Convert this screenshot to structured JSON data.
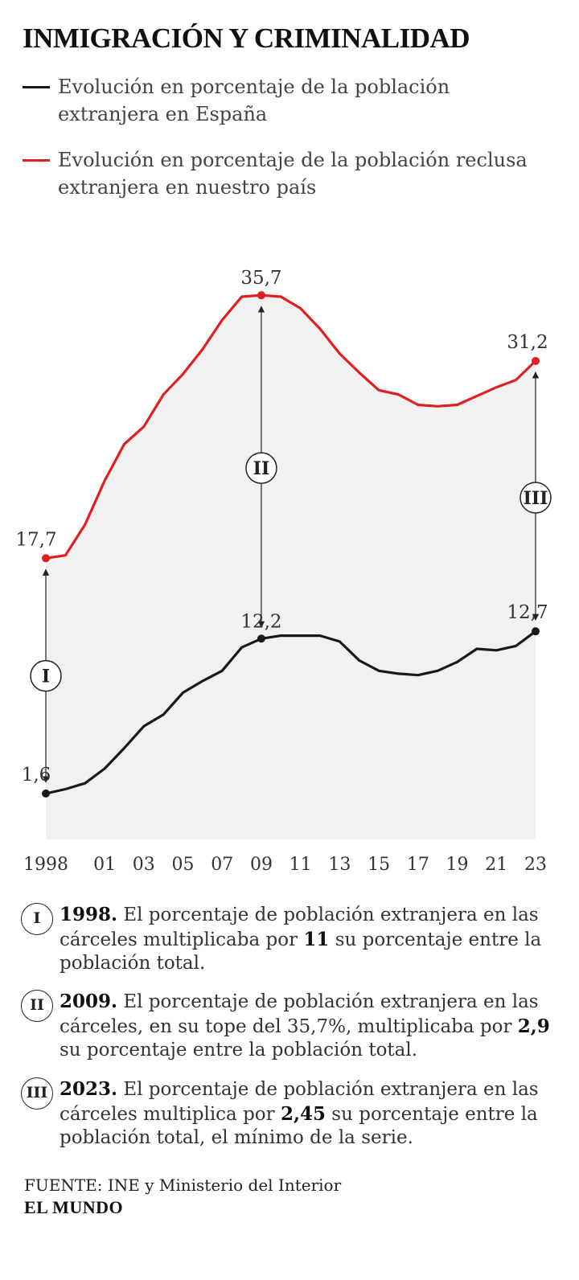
{
  "title": "INMIGRACIÓN Y CRIMINALIDAD",
  "legend": [
    {
      "label": "Evolución en porcentaje de la población extranjera en España",
      "color": "#1a1a1a"
    },
    {
      "label": "Evolución en porcentaje de la población reclusa extranjera en nuestro país",
      "color": "#e02020"
    }
  ],
  "chart_data": {
    "type": "line",
    "title": "INMIGRACIÓN Y CRIMINALIDAD",
    "xlabel": "",
    "ylabel": "",
    "x": [
      1998,
      1999,
      2000,
      2001,
      2002,
      2003,
      2004,
      2005,
      2006,
      2007,
      2008,
      2009,
      2010,
      2011,
      2012,
      2013,
      2014,
      2015,
      2016,
      2017,
      2018,
      2019,
      2020,
      2021,
      2022,
      2023
    ],
    "x_tick_labels": [
      "1998",
      "01",
      "03",
      "05",
      "07",
      "09",
      "11",
      "13",
      "15",
      "17",
      "19",
      "21",
      "23"
    ],
    "x_tick_values": [
      1998,
      2001,
      2003,
      2005,
      2007,
      2009,
      2011,
      2013,
      2015,
      2017,
      2019,
      2021,
      2023
    ],
    "ylim": [
      0,
      40
    ],
    "grid": false,
    "series": [
      {
        "name": "Evolución en porcentaje de la población extranjera en España",
        "color": "#1a1a1a",
        "values": [
          1.6,
          1.9,
          2.3,
          3.3,
          4.7,
          6.2,
          7.0,
          8.5,
          9.3,
          10.0,
          11.6,
          12.2,
          12.4,
          12.4,
          12.4,
          12.0,
          10.7,
          10.0,
          9.8,
          9.7,
          10.0,
          10.6,
          11.5,
          11.4,
          11.7,
          12.7
        ]
      },
      {
        "name": "Evolución en porcentaje de la población reclusa extranjera en nuestro país",
        "color": "#e02020",
        "values": [
          17.7,
          17.9,
          20.0,
          23.0,
          25.5,
          26.7,
          28.9,
          30.3,
          32.0,
          34.0,
          35.6,
          35.7,
          35.6,
          34.8,
          33.4,
          31.7,
          30.4,
          29.2,
          28.9,
          28.2,
          28.1,
          28.2,
          28.8,
          29.4,
          29.9,
          31.2
        ]
      }
    ],
    "annotations": [
      {
        "label": "17,7",
        "series": 1,
        "x": 1998
      },
      {
        "label": "35,7",
        "series": 1,
        "x": 2009
      },
      {
        "label": "31,2",
        "series": 1,
        "x": 2023
      },
      {
        "label": "1,6",
        "series": 0,
        "x": 1998
      },
      {
        "label": "12,2",
        "series": 0,
        "x": 2009
      },
      {
        "label": "12,7",
        "series": 0,
        "x": 2023
      }
    ],
    "markers": [
      {
        "roman": "I",
        "x": 1998
      },
      {
        "roman": "II",
        "x": 2009
      },
      {
        "roman": "III",
        "x": 2023
      }
    ]
  },
  "notes": [
    {
      "roman": "I",
      "year": "1998.",
      "text_a": " El porcentaje de población extranjera en las cárceles multiplicaba por ",
      "bold": "11",
      "text_b": " su porcentaje entre la población total."
    },
    {
      "roman": "II",
      "year": "2009.",
      "text_a": " El porcentaje de población extranjera en las cárceles, en su tope del 35,7%, multiplicaba por ",
      "bold": "2,9",
      "text_b": " su porcentaje entre la población total."
    },
    {
      "roman": "III",
      "year": "2023.",
      "text_a": " El porcentaje de población extranjera en las cárceles multiplica por ",
      "bold": "2,45",
      "text_b": " su porcentaje entre la población total, el mínimo de la serie."
    }
  ],
  "source": "FUENTE: INE y Ministerio del Interior",
  "brand": "EL MUNDO"
}
